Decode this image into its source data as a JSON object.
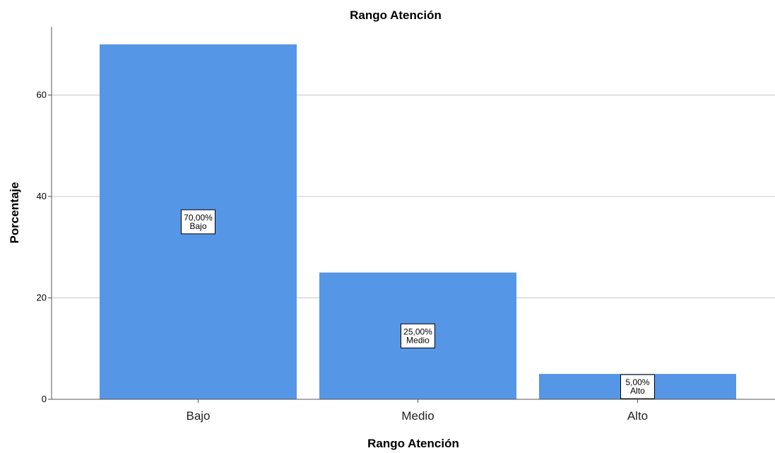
{
  "chart_data": {
    "type": "bar",
    "title": "Rango Atención",
    "xlabel": "Rango Atención",
    "ylabel": "Porcentaje",
    "categories": [
      "Bajo",
      "Medio",
      "Alto"
    ],
    "values": [
      70,
      25,
      5
    ],
    "data_labels": [
      {
        "value": "70,00%",
        "category": "Bajo"
      },
      {
        "value": "25,00%",
        "category": "Medio"
      },
      {
        "value": "5,00%",
        "category": "Alto"
      }
    ],
    "ylim": [
      0,
      74
    ],
    "yticks": [
      0,
      20,
      40,
      60
    ],
    "grid": true,
    "bar_color": "#5596e6",
    "grid_color": "#c8c8c8"
  }
}
